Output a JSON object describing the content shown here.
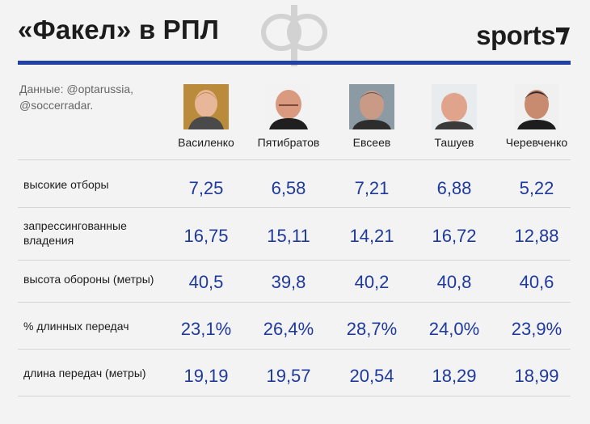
{
  "header": {
    "title": "«Факел» в РПЛ",
    "brand": "sports",
    "accent_color": "#2241a5"
  },
  "source": {
    "text": "Данные: @optarussia, @soccerradar."
  },
  "coaches": [
    {
      "name": "Василенко",
      "icon": "coach-photo"
    },
    {
      "name": "Пятибратов",
      "icon": "coach-photo"
    },
    {
      "name": "Евсеев",
      "icon": "coach-photo"
    },
    {
      "name": "Ташуев",
      "icon": "coach-photo"
    },
    {
      "name": "Черевченко",
      "icon": "coach-photo"
    }
  ],
  "metrics": [
    {
      "label": "высокие отборы",
      "values": [
        "7,25",
        "6,58",
        "7,21",
        "6,88",
        "5,22"
      ]
    },
    {
      "label": "запрессингованные владения",
      "values": [
        "16,75",
        "15,11",
        "14,21",
        "16,72",
        "12,88"
      ]
    },
    {
      "label": "высота обороны (метры)",
      "values": [
        "40,5",
        "39,8",
        "40,2",
        "40,8",
        "40,6"
      ]
    },
    {
      "label": "% длинных передач",
      "values": [
        "23,1%",
        "26,4%",
        "28,7%",
        "24,0%",
        "23,9%"
      ]
    },
    {
      "label": "длина передач (метры)",
      "values": [
        "19,19",
        "19,57",
        "20,54",
        "18,29",
        "18,99"
      ]
    }
  ]
}
